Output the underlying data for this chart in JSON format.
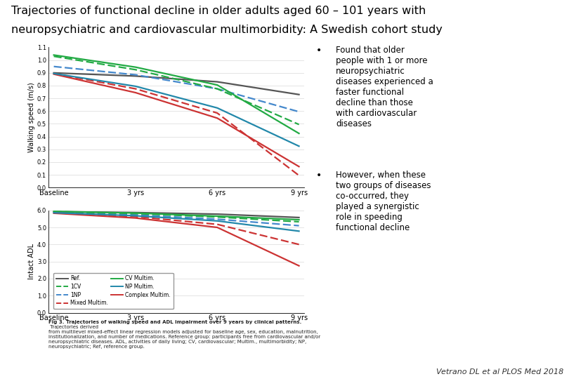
{
  "title_line1": "Trajectories of functional decline in older adults aged 60 – 101 years with",
  "title_line2": "neuropsychiatric and cardiovascular multimorbidity: A Swedish cohort study",
  "title_fontsize": 11.5,
  "x_ticks": [
    0,
    3,
    6,
    9
  ],
  "x_ticklabels": [
    "Baseline",
    "3 yrs",
    "6 yrs",
    "9 yrs"
  ],
  "walking_ylabel": "Walking speed (m/s)",
  "walking_ylim": [
    0.0,
    1.1
  ],
  "walking_yticks": [
    0.0,
    0.1,
    0.2,
    0.3,
    0.4,
    0.5,
    0.6,
    0.7,
    0.8,
    0.9,
    1.0,
    1.1
  ],
  "adl_ylabel": "Intact ADL",
  "adl_ylim": [
    0.0,
    6.0
  ],
  "adl_yticks": [
    0.0,
    1.0,
    2.0,
    3.0,
    4.0,
    5.0,
    6.0
  ],
  "series": [
    {
      "label": "Ref.",
      "color": "#555555",
      "linestyle": "solid",
      "walking": [
        0.9,
        0.875,
        0.83,
        0.73
      ],
      "adl": [
        5.92,
        5.87,
        5.78,
        5.58
      ]
    },
    {
      "label": "1NP",
      "color": "#4488cc",
      "linestyle": "dashed",
      "walking": [
        0.95,
        0.885,
        0.775,
        0.595
      ],
      "adl": [
        5.88,
        5.73,
        5.48,
        5.1
      ]
    },
    {
      "label": "CV Multim.",
      "color": "#22aa44",
      "linestyle": "solid",
      "walking": [
        1.04,
        0.945,
        0.805,
        0.425
      ],
      "adl": [
        5.94,
        5.84,
        5.66,
        5.45
      ]
    },
    {
      "label": "Complex Multim.",
      "color": "#cc3333",
      "linestyle": "solid",
      "walking": [
        0.89,
        0.745,
        0.545,
        0.165
      ],
      "adl": [
        5.83,
        5.55,
        5.0,
        2.75
      ]
    },
    {
      "label": "1CV",
      "color": "#22aa44",
      "linestyle": "dashed",
      "walking": [
        1.03,
        0.925,
        0.775,
        0.495
      ],
      "adl": [
        5.93,
        5.81,
        5.61,
        5.33
      ]
    },
    {
      "label": "Mixed Multim.",
      "color": "#cc3333",
      "linestyle": "dashed",
      "walking": [
        0.895,
        0.775,
        0.585,
        0.095
      ],
      "adl": [
        5.86,
        5.63,
        5.18,
        4.0
      ]
    },
    {
      "label": "NP Multim.",
      "color": "#2288aa",
      "linestyle": "solid",
      "walking": [
        0.895,
        0.795,
        0.625,
        0.325
      ],
      "adl": [
        5.86,
        5.68,
        5.38,
        4.78
      ]
    }
  ],
  "bullet1": "Found that older\npeople with 1 or more\nneuropsychiatric\ndiseases experienced a\nfaster functional\ndecline than those\nwith cardiovascular\ndiseases",
  "bullet2": "However, when these\ntwo groups of diseases\nco-occurred, they\nplayed a synergistic\nrole in speeding\nfunctional decline",
  "caption_bold": "Fig 3. Trajectories of walking speed and ADL impairment over 9 years by clinical patterns.",
  "caption_normal": " Trajectories derived\nfrom multilevel mixed-effect linear regression models adjusted for baseline age, sex, education, malnutrition,\ninstitutionalization, and number of medications. Reference group: participants free from cardiovascular and/or\nneuropsychiatric diseases. ADL, activities of daily living; CV, cardiovascular; Multim., multimorbidity; NP,\nneuropsychiatric; Ref, reference group.",
  "attribution": "Vetrano DL et al PLOS Med 2018",
  "bg_color": "#ffffff",
  "legend_col1": [
    "Ref.",
    "1NP",
    "CV Multim.",
    "Complex Multim."
  ],
  "legend_col2": [
    "1CV",
    "Mixed Multim.",
    "NP Multim."
  ]
}
